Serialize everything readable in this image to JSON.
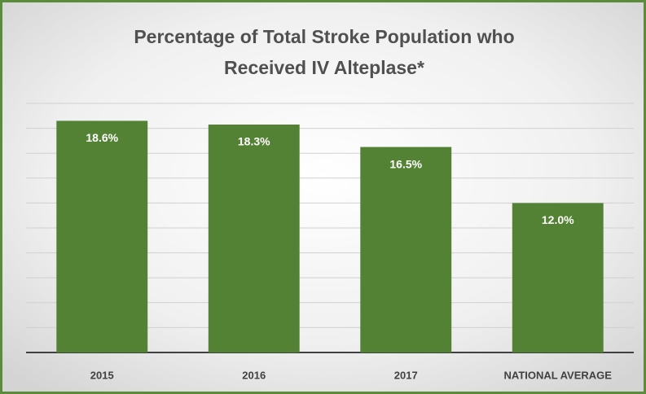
{
  "chart_data": {
    "type": "bar",
    "title_lines": [
      "Percentage of Total Stroke Population  who",
      "Received IV Alteplase*"
    ],
    "categories": [
      "2015",
      "2016",
      "2017",
      "NATIONAL AVERAGE"
    ],
    "values": [
      18.6,
      18.3,
      16.5,
      12.0
    ],
    "value_labels": [
      "18.6%",
      "18.3%",
      "16.5%",
      "12.0%"
    ],
    "color": "#548235",
    "ylim": [
      0,
      20
    ],
    "yticks": [
      0,
      2,
      4,
      6,
      8,
      10,
      12,
      14,
      16,
      18,
      20
    ],
    "grid": true
  }
}
